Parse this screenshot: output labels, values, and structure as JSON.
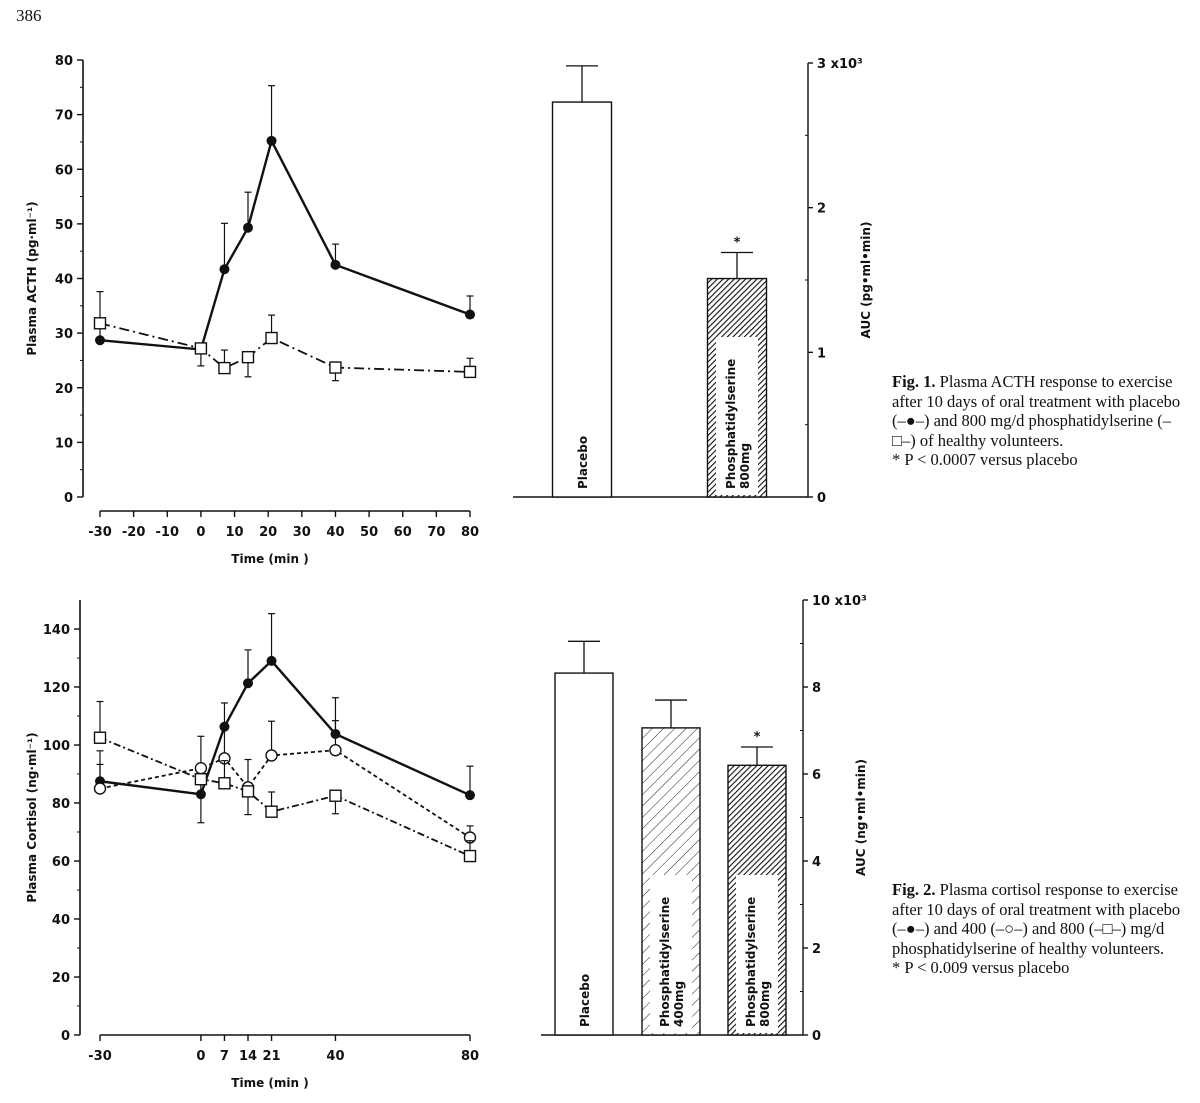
{
  "page_number": "386",
  "chart_data": [
    {
      "id": "fig1-line",
      "type": "line",
      "ylabel": "Plasma ACTH (pg·ml⁻¹)",
      "xlabel": "Time (min )",
      "xlim": [
        -30,
        80
      ],
      "ylim": [
        0,
        80
      ],
      "xticks": [
        -30,
        -20,
        -10,
        0,
        10,
        20,
        30,
        40,
        50,
        60,
        70,
        80
      ],
      "yticks": [
        0,
        10,
        20,
        30,
        40,
        50,
        60,
        70,
        80
      ],
      "series": [
        {
          "name": "Placebo",
          "marker": "filled-circle",
          "line": "solid",
          "x": [
            -30,
            0,
            7,
            14,
            21,
            40,
            80
          ],
          "y": [
            28.7,
            27.0,
            41.7,
            49.3,
            65.2,
            42.5,
            33.4
          ],
          "err": [
            3.2,
            0,
            8.4,
            6.5,
            10.1,
            3.8,
            3.4
          ],
          "err_dir": "mixed"
        },
        {
          "name": "Phosphatidylserine 800 mg/d",
          "marker": "open-square",
          "line": "dash-dot",
          "x": [
            -30,
            0,
            7,
            14,
            21,
            40,
            80
          ],
          "y": [
            31.8,
            27.2,
            23.6,
            25.6,
            29.1,
            23.7,
            22.9
          ],
          "err": [
            5.8,
            3.2,
            3.3,
            3.6,
            4.2,
            2.4,
            2.5
          ]
        }
      ]
    },
    {
      "id": "fig1-bar",
      "type": "bar",
      "ylabel": "AUC (pg•ml•min)",
      "ylim": [
        0,
        3000
      ],
      "yticks": [
        0,
        1000,
        2000,
        3000
      ],
      "ytick_labels": [
        "0",
        "1",
        "2",
        "3 x10³"
      ],
      "categories": [
        "Placebo",
        "Phosphatidylserine 800mg"
      ],
      "values": [
        2730,
        1510
      ],
      "err": [
        250,
        180
      ],
      "patterns": [
        "none",
        "dense-hatch"
      ],
      "significance": [
        "",
        "*"
      ]
    },
    {
      "id": "fig2-line",
      "type": "line",
      "ylabel": "Plasma Cortisol (ng·ml⁻¹)",
      "xlabel": "Time (min )",
      "xlim": [
        -30,
        80
      ],
      "ylim": [
        0,
        150
      ],
      "xticks": [
        -30,
        0,
        7,
        14,
        21,
        40,
        80
      ],
      "yticks": [
        0,
        20,
        40,
        60,
        80,
        100,
        120,
        140
      ],
      "series": [
        {
          "name": "Placebo",
          "marker": "filled-circle",
          "line": "solid",
          "x": [
            -30,
            0,
            7,
            14,
            21,
            40,
            80
          ],
          "y": [
            87.5,
            83.0,
            106.3,
            121.3,
            129.0,
            103.8,
            82.7
          ],
          "err": [
            10.5,
            10.0,
            8.2,
            11.5,
            16.3,
            12.5,
            10.0
          ]
        },
        {
          "name": "Phosphatidylserine 400 mg/d",
          "marker": "open-circle",
          "line": "dashed",
          "x": [
            -30,
            0,
            7,
            14,
            21,
            40,
            80
          ],
          "y": [
            85.0,
            92.0,
            95.4,
            85.4,
            96.4,
            98.2,
            68.1
          ],
          "err": [
            8.3,
            11.0,
            12.0,
            9.6,
            11.8,
            10.2,
            4.0
          ]
        },
        {
          "name": "Phosphatidylserine 800 mg/d",
          "marker": "open-square",
          "line": "dash-dot",
          "x": [
            -30,
            0,
            7,
            14,
            21,
            40,
            80
          ],
          "y": [
            102.5,
            88.2,
            86.8,
            84.0,
            77.0,
            82.5,
            61.7
          ],
          "err": [
            12.5,
            15.0,
            7.8,
            8.0,
            6.8,
            6.2,
            5.3
          ]
        }
      ]
    },
    {
      "id": "fig2-bar",
      "type": "bar",
      "ylabel": "AUC (ng•ml•min)",
      "ylim": [
        0,
        10000
      ],
      "yticks": [
        0,
        2000,
        4000,
        6000,
        8000,
        10000
      ],
      "ytick_labels": [
        "0",
        "2",
        "4",
        "6",
        "8",
        "10 x10³"
      ],
      "categories": [
        "Placebo",
        "Phosphatidylserine 400mg",
        "Phosphatidylserine 800mg"
      ],
      "values": [
        8320,
        7060,
        6200
      ],
      "err": [
        730,
        640,
        420
      ],
      "patterns": [
        "none",
        "sparse-hatch",
        "dense-hatch"
      ],
      "significance": [
        "",
        "",
        "*"
      ]
    }
  ],
  "captions": {
    "fig1": {
      "label": "Fig. 1.",
      "text": "Plasma ACTH response to exercise after 10 days of oral treatment with placebo (–●–) and 800 mg/d phosphatidylserine (–□–) of healthy volunteers.",
      "footnote": "* P < 0.0007 versus placebo"
    },
    "fig2": {
      "label": "Fig. 2.",
      "text": "Plasma cortisol response to exercise after 10 days of oral treatment with placebo (–●–) and 400 (–○–) and 800 (–□–) mg/d phosphatidylserine of healthy volunteers.",
      "footnote": "* P < 0.009 versus placebo"
    }
  }
}
